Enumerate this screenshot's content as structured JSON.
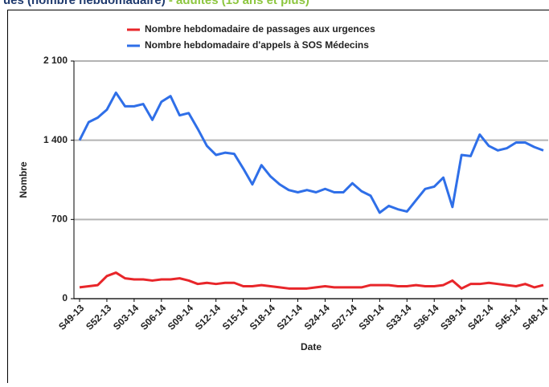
{
  "chart_data": {
    "type": "line",
    "title": "ues (nombre hebdomadaire)",
    "subtitle": "- adultes (15 ans et plus)",
    "x_label": "Date",
    "y_label": "Nombre",
    "categories": [
      "S49-13",
      null,
      null,
      "S52-13",
      null,
      null,
      "S03-14",
      null,
      null,
      "S06-14",
      null,
      null,
      "S09-14",
      null,
      null,
      "S12-14",
      null,
      null,
      "S15-14",
      null,
      null,
      "S18-14",
      null,
      null,
      "S21-14",
      null,
      null,
      "S24-14",
      null,
      null,
      "S27-14",
      null,
      null,
      "S30-14",
      null,
      null,
      "S33-14",
      null,
      null,
      "S36-14",
      null,
      null,
      "S39-14",
      null,
      null,
      "S42-14",
      null,
      null,
      "S45-14",
      null,
      null,
      "S48-14"
    ],
    "series": [
      {
        "name": "Nombre hebdomadaire de passages aux urgences",
        "color": "#e8262a",
        "values": [
          100,
          110,
          120,
          200,
          230,
          180,
          170,
          170,
          160,
          170,
          170,
          180,
          160,
          130,
          140,
          130,
          140,
          140,
          110,
          110,
          120,
          110,
          100,
          90,
          90,
          90,
          100,
          110,
          100,
          100,
          100,
          100,
          120,
          120,
          120,
          110,
          110,
          120,
          110,
          110,
          120,
          160,
          90,
          130,
          130,
          140,
          130,
          120,
          110,
          130,
          100,
          120
        ]
      },
      {
        "name": "Nombre hebdomadaire d'appels à SOS Médecins",
        "color": "#2f6fe8",
        "values": [
          1400,
          1560,
          1600,
          1670,
          1820,
          1700,
          1700,
          1720,
          1580,
          1740,
          1790,
          1620,
          1640,
          1500,
          1350,
          1270,
          1290,
          1280,
          1150,
          1010,
          1180,
          1080,
          1010,
          960,
          940,
          960,
          940,
          970,
          940,
          940,
          1020,
          950,
          910,
          760,
          820,
          790,
          770,
          870,
          970,
          990,
          1070,
          810,
          1270,
          1260,
          1450,
          1350,
          1310,
          1330,
          1380,
          1380,
          1340,
          1310
        ]
      }
    ],
    "ylim": [
      0,
      2100
    ],
    "yticks": [
      0,
      700,
      {
        "value": 1400,
        "label": "1 400"
      },
      {
        "value": 2100,
        "label": "2 100"
      }
    ],
    "grid": true,
    "legend": "top"
  }
}
